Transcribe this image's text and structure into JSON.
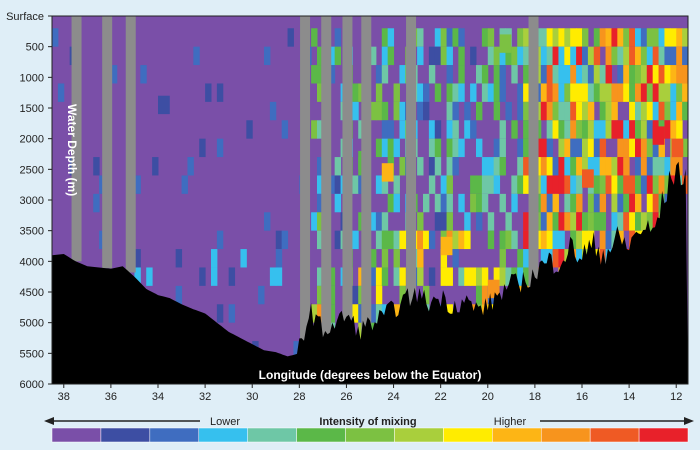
{
  "chart_data": {
    "type": "heatmap",
    "title": "",
    "xlabel": "Longitude (degrees below the Equator)",
    "ylabel": "Water Depth (m)",
    "x_range": [
      38.5,
      11.5
    ],
    "y_range": [
      0,
      6000
    ],
    "x_ticks": [
      38,
      36,
      34,
      32,
      30,
      28,
      26,
      24,
      22,
      20,
      18,
      16,
      14,
      12
    ],
    "y_ticks": [
      {
        "value": 0,
        "label": "Surface"
      },
      {
        "value": 500,
        "label": "500"
      },
      {
        "value": 1000,
        "label": "1000"
      },
      {
        "value": 1500,
        "label": "1500"
      },
      {
        "value": 2000,
        "label": "2000"
      },
      {
        "value": 2500,
        "label": "2500"
      },
      {
        "value": 3000,
        "label": "3000"
      },
      {
        "value": 3500,
        "label": "3500"
      },
      {
        "value": 4000,
        "label": "4000"
      },
      {
        "value": 4500,
        "label": "4500"
      },
      {
        "value": 5000,
        "label": "5000"
      },
      {
        "value": 5500,
        "label": "5500"
      },
      {
        "value": 6000,
        "label": "6000"
      }
    ],
    "colorscale": {
      "title": "Intensity of mixing",
      "low_label": "Lower",
      "high_label": "Higher",
      "colors": [
        "#7a4fa8",
        "#3d4ea3",
        "#3f6dc0",
        "#36c0ee",
        "#6ec7a6",
        "#5bb848",
        "#7cc142",
        "#a9cf3c",
        "#ffec00",
        "#fdb515",
        "#f7941d",
        "#ef5a24",
        "#e8212a"
      ]
    },
    "no_data_color": "#8c8c8c",
    "seafloor_color": "#000000",
    "background_color": "#7a4fa8",
    "seafloor_depth": [
      [
        38.5,
        3900
      ],
      [
        38,
        3880
      ],
      [
        37.5,
        4000
      ],
      [
        37,
        4080
      ],
      [
        36.5,
        4100
      ],
      [
        36,
        4120
      ],
      [
        35.5,
        4080
      ],
      [
        35,
        4250
      ],
      [
        34.5,
        4450
      ],
      [
        34,
        4550
      ],
      [
        33.5,
        4600
      ],
      [
        33,
        4700
      ],
      [
        32.5,
        4780
      ],
      [
        32,
        4850
      ],
      [
        31.5,
        5000
      ],
      [
        31,
        5150
      ],
      [
        30.5,
        5250
      ],
      [
        30,
        5350
      ],
      [
        29.5,
        5450
      ],
      [
        29,
        5480
      ],
      [
        28.5,
        5550
      ],
      [
        28,
        5500
      ],
      [
        27.5,
        5000
      ],
      [
        27,
        5300
      ],
      [
        26.5,
        5200
      ],
      [
        26,
        5050
      ],
      [
        25.5,
        5300
      ],
      [
        25,
        5200
      ],
      [
        24.5,
        5100
      ],
      [
        24,
        4950
      ],
      [
        23.5,
        4800
      ],
      [
        23,
        4700
      ],
      [
        22.5,
        4850
      ],
      [
        22,
        4750
      ],
      [
        21.5,
        4900
      ],
      [
        21,
        4800
      ],
      [
        20.5,
        4950
      ],
      [
        20,
        4900
      ],
      [
        19.5,
        4700
      ],
      [
        19,
        4550
      ],
      [
        18.5,
        4500
      ],
      [
        18,
        4400
      ],
      [
        17.5,
        4300
      ],
      [
        17,
        4200
      ],
      [
        16.5,
        4050
      ],
      [
        16,
        4150
      ],
      [
        15.5,
        4000
      ],
      [
        15,
        4100
      ],
      [
        14.5,
        3900
      ],
      [
        14,
        4000
      ],
      [
        13.5,
        3700
      ],
      [
        13,
        3800
      ],
      [
        12.5,
        3200
      ],
      [
        12,
        2700
      ],
      [
        11.5,
        3000
      ]
    ],
    "no_data_columns": [
      37.5,
      36.2,
      35.2,
      27.8,
      26.9,
      26.0,
      25.2,
      23.3,
      18.1
    ],
    "cells_sample": [
      {
        "lon": 34.0,
        "depth_from": 1300,
        "depth_to": 1600,
        "level": 1
      },
      {
        "lon": 25.5,
        "depth_from": 2200,
        "depth_to": 2500,
        "level": 5
      },
      {
        "lon": 24.5,
        "depth_from": 2400,
        "depth_to": 2700,
        "level": 9
      },
      {
        "lon": 22.0,
        "depth_from": 3600,
        "depth_to": 3900,
        "level": 9
      },
      {
        "lon": 20.0,
        "depth_from": 4300,
        "depth_to": 4600,
        "level": 10
      },
      {
        "lon": 19.5,
        "depth_from": 300,
        "depth_to": 600,
        "level": 6
      },
      {
        "lon": 16.0,
        "depth_from": 2500,
        "depth_to": 2800,
        "level": 11
      },
      {
        "lon": 13.0,
        "depth_from": 1800,
        "depth_to": 2100,
        "level": 12
      },
      {
        "lon": 12.2,
        "depth_from": 2000,
        "depth_to": 2300,
        "level": 11
      }
    ]
  }
}
